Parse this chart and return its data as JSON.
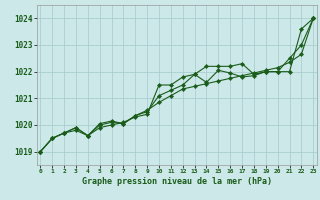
{
  "title": "Graphe pression niveau de la mer (hPa)",
  "bg_color": "#cce8e8",
  "grid_color": "#aacece",
  "line_color": "#1a5c1a",
  "hours": [
    0,
    1,
    2,
    3,
    4,
    5,
    6,
    7,
    8,
    9,
    10,
    11,
    12,
    13,
    14,
    15,
    16,
    17,
    18,
    19,
    20,
    21,
    22,
    23
  ],
  "line1": [
    1019.0,
    1019.5,
    1019.7,
    1019.8,
    1019.6,
    1019.9,
    1020.0,
    1020.1,
    1020.3,
    1020.4,
    1021.5,
    1021.5,
    1021.8,
    1021.9,
    1022.2,
    1022.2,
    1022.2,
    1022.3,
    1021.9,
    1022.0,
    1022.0,
    1022.0,
    1023.6,
    1024.0
  ],
  "line2": [
    1019.0,
    1019.5,
    1019.7,
    1019.9,
    1019.6,
    1020.0,
    1020.1,
    1020.05,
    1020.35,
    1020.5,
    1021.1,
    1021.3,
    1021.5,
    1021.9,
    1021.6,
    1022.05,
    1021.95,
    1021.8,
    1021.85,
    1022.0,
    1022.0,
    1022.5,
    1023.0,
    1024.0
  ],
  "line3": [
    1019.0,
    1019.5,
    1019.7,
    1019.9,
    1019.6,
    1020.05,
    1020.15,
    1020.05,
    1020.35,
    1020.55,
    1020.85,
    1021.1,
    1021.35,
    1021.45,
    1021.55,
    1021.65,
    1021.75,
    1021.85,
    1021.95,
    1022.05,
    1022.15,
    1022.35,
    1022.65,
    1024.0
  ],
  "ylim": [
    1018.5,
    1024.5
  ],
  "yticks": [
    1019,
    1020,
    1021,
    1022,
    1023,
    1024
  ],
  "xlim": [
    -0.3,
    23.3
  ]
}
